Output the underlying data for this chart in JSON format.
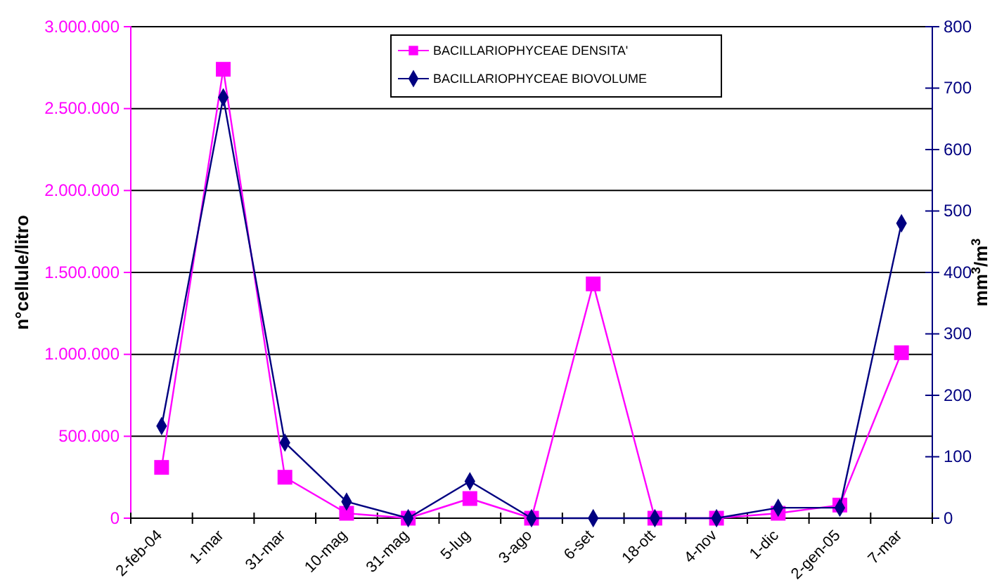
{
  "chart_data": {
    "type": "line",
    "ylabel": "n°cellule/litro",
    "y2label": "mm$^{3}$/m$^{3}$",
    "categories": [
      "2-feb-04",
      "1-mar",
      "31-mar",
      "10-mag",
      "31-mag",
      "5-lug",
      "3-ago",
      "6-set",
      "18-ott",
      "4-nov",
      "1-dic",
      "2-gen-05",
      "7-mar"
    ],
    "series": [
      {
        "name": "BACILLARIOPHYCEAE DENSITA'",
        "color": "#ff00ff",
        "marker": "square",
        "values": [
          310000,
          2740000,
          250000,
          30000,
          0,
          120000,
          0,
          1430000,
          0,
          0,
          30000,
          80000,
          1010000
        ]
      },
      {
        "name": "BACILLARIOPHYCEAE BIOVOLUME",
        "color": "#000080",
        "marker": "diamond",
        "axis": "y2",
        "values": [
          150,
          685,
          123,
          27,
          0,
          60,
          0,
          0,
          0,
          0,
          17,
          17,
          480
        ]
      }
    ],
    "ylim": [
      0,
      3000000
    ],
    "yticks": [
      {
        "value": 0,
        "label": "0"
      },
      {
        "value": 500000,
        "label": "500.000"
      },
      {
        "value": 1000000,
        "label": "1.000.000"
      },
      {
        "value": 1500000,
        "label": "1.500.000"
      },
      {
        "value": 2000000,
        "label": "2.000.000"
      },
      {
        "value": 2500000,
        "label": "2.500.000"
      },
      {
        "value": 3000000,
        "label": "3.000.000"
      }
    ],
    "y2lim": [
      0,
      800
    ],
    "y2ticks": [
      0,
      100,
      200,
      300,
      400,
      500,
      600,
      700,
      800
    ],
    "grid": "y",
    "legend": "top right"
  }
}
